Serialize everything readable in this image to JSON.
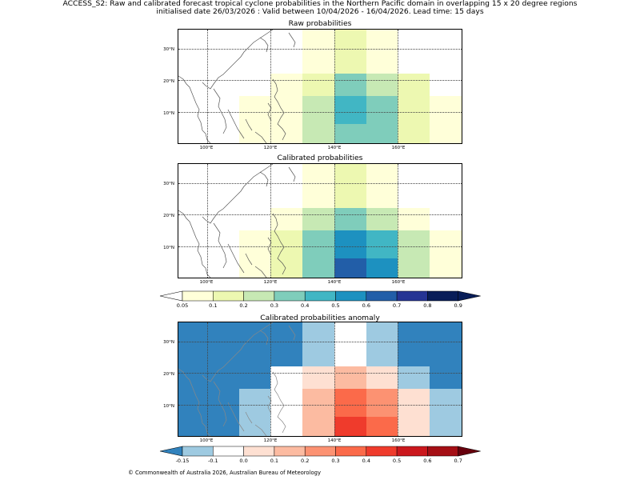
{
  "header": {
    "line1": "ACCESS_S2: Raw and calibrated forecast tropical cyclone probabilities in the Northern Pacific domain in overlapping 15 x 20 degree regions",
    "line2": "initialised date 26/03/2026 :  Valid between 10/04/2026 - 16/04/2026. Lead time: 15 days"
  },
  "axes": {
    "lat_labels": [
      "30°N",
      "20°N",
      "10°N"
    ],
    "lon_labels": [
      "100°E",
      "120°E",
      "140°E",
      "160°E"
    ]
  },
  "panels": [
    {
      "title": "Raw probabilities",
      "cells": [
        {
          "lon0": 110,
          "lon1": 130,
          "lat0": 0,
          "lat1": 15,
          "color": "#ffffd9"
        },
        {
          "lon0": 120,
          "lon1": 130,
          "lat0": 15,
          "lat1": 22,
          "color": "#ffffd9"
        },
        {
          "lon0": 130,
          "lon1": 140,
          "lat0": 22,
          "lat1": 30,
          "color": "#ffffd9"
        },
        {
          "lon0": 130,
          "lon1": 140,
          "lat0": 15,
          "lat1": 22,
          "color": "#edf8b1"
        },
        {
          "lon0": 130,
          "lon1": 140,
          "lat0": 0,
          "lat1": 15,
          "color": "#c7e9b4"
        },
        {
          "lon0": 150,
          "lon1": 160,
          "lat0": 22,
          "lat1": 30,
          "color": "#ffffd9"
        },
        {
          "lon0": 140,
          "lon1": 150,
          "lat0": 22,
          "lat1": 30,
          "color": "#edf8b1"
        },
        {
          "lon0": 130,
          "lon1": 140,
          "lat0": 30,
          "lat1": 37,
          "color": "#ffffd9"
        },
        {
          "lon0": 140,
          "lon1": 150,
          "lat0": 30,
          "lat1": 37,
          "color": "#edf8b1"
        },
        {
          "lon0": 150,
          "lon1": 160,
          "lat0": 30,
          "lat1": 37,
          "color": "#ffffd9"
        },
        {
          "lon0": 140,
          "lon1": 150,
          "lat0": 15,
          "lat1": 22,
          "color": "#7fcdbb"
        },
        {
          "lon0": 150,
          "lon1": 160,
          "lat0": 15,
          "lat1": 22,
          "color": "#c7e9b4"
        },
        {
          "lon0": 160,
          "lon1": 170,
          "lat0": 15,
          "lat1": 22,
          "color": "#edf8b1"
        },
        {
          "lon0": 140,
          "lon1": 150,
          "lat0": 6,
          "lat1": 15,
          "color": "#41b6c4"
        },
        {
          "lon0": 140,
          "lon1": 150,
          "lat0": 0,
          "lat1": 6,
          "color": "#7fcdbb"
        },
        {
          "lon0": 150,
          "lon1": 160,
          "lat0": 0,
          "lat1": 15,
          "color": "#7fcdbb"
        },
        {
          "lon0": 160,
          "lon1": 170,
          "lat0": 0,
          "lat1": 15,
          "color": "#edf8b1"
        },
        {
          "lon0": 170,
          "lon1": 180,
          "lat0": 0,
          "lat1": 15,
          "color": "#ffffd9"
        }
      ]
    },
    {
      "title": "Calibrated probabilities",
      "cells": [
        {
          "lon0": 110,
          "lon1": 130,
          "lat0": 0,
          "lat1": 15,
          "color": "#ffffd9"
        },
        {
          "lon0": 120,
          "lon1": 130,
          "lat0": 0,
          "lat1": 15,
          "color": "#edf8b1"
        },
        {
          "lon0": 120,
          "lon1": 130,
          "lat0": 15,
          "lat1": 22,
          "color": "#ffffd9"
        },
        {
          "lon0": 130,
          "lon1": 140,
          "lat0": 22,
          "lat1": 30,
          "color": "#ffffd9"
        },
        {
          "lon0": 130,
          "lon1": 140,
          "lat0": 15,
          "lat1": 22,
          "color": "#c7e9b4"
        },
        {
          "lon0": 130,
          "lon1": 140,
          "lat0": 0,
          "lat1": 15,
          "color": "#7fcdbb"
        },
        {
          "lon0": 140,
          "lon1": 150,
          "lat0": 22,
          "lat1": 30,
          "color": "#edf8b1"
        },
        {
          "lon0": 150,
          "lon1": 160,
          "lat0": 22,
          "lat1": 30,
          "color": "#ffffd9"
        },
        {
          "lon0": 130,
          "lon1": 140,
          "lat0": 30,
          "lat1": 37,
          "color": "#ffffd9"
        },
        {
          "lon0": 140,
          "lon1": 150,
          "lat0": 30,
          "lat1": 37,
          "color": "#edf8b1"
        },
        {
          "lon0": 150,
          "lon1": 160,
          "lat0": 30,
          "lat1": 37,
          "color": "#ffffd9"
        },
        {
          "lon0": 140,
          "lon1": 150,
          "lat0": 15,
          "lat1": 22,
          "color": "#7fcdbb"
        },
        {
          "lon0": 150,
          "lon1": 160,
          "lat0": 15,
          "lat1": 22,
          "color": "#c7e9b4"
        },
        {
          "lon0": 160,
          "lon1": 170,
          "lat0": 15,
          "lat1": 22,
          "color": "#ffffd9"
        },
        {
          "lon0": 140,
          "lon1": 150,
          "lat0": 6,
          "lat1": 15,
          "color": "#1d91c0"
        },
        {
          "lon0": 140,
          "lon1": 150,
          "lat0": 0,
          "lat1": 6,
          "color": "#225ea8"
        },
        {
          "lon0": 150,
          "lon1": 160,
          "lat0": 6,
          "lat1": 15,
          "color": "#41b6c4"
        },
        {
          "lon0": 150,
          "lon1": 160,
          "lat0": 0,
          "lat1": 6,
          "color": "#1d91c0"
        },
        {
          "lon0": 160,
          "lon1": 170,
          "lat0": 0,
          "lat1": 15,
          "color": "#c7e9b4"
        },
        {
          "lon0": 170,
          "lon1": 180,
          "lat0": 0,
          "lat1": 15,
          "color": "#ffffd9"
        }
      ]
    },
    {
      "title": "Calibrated probabilities anomaly",
      "background": "#3182bd",
      "cells": [
        {
          "lon0": 110,
          "lon1": 120,
          "lat0": 0,
          "lat1": 15,
          "color": "#9ecae1"
        },
        {
          "lon0": 120,
          "lon1": 130,
          "lat0": 0,
          "lat1": 15,
          "color": "#ffffff"
        },
        {
          "lon0": 120,
          "lon1": 130,
          "lat0": 15,
          "lat1": 22,
          "color": "#ffffff"
        },
        {
          "lon0": 130,
          "lon1": 140,
          "lat0": 22,
          "lat1": 30,
          "color": "#9ecae1"
        },
        {
          "lon0": 130,
          "lon1": 140,
          "lat0": 30,
          "lat1": 37,
          "color": "#9ecae1"
        },
        {
          "lon0": 140,
          "lon1": 150,
          "lat0": 22,
          "lat1": 30,
          "color": "#ffffff"
        },
        {
          "lon0": 140,
          "lon1": 150,
          "lat0": 30,
          "lat1": 37,
          "color": "#ffffff"
        },
        {
          "lon0": 150,
          "lon1": 160,
          "lat0": 22,
          "lat1": 30,
          "color": "#9ecae1"
        },
        {
          "lon0": 150,
          "lon1": 160,
          "lat0": 30,
          "lat1": 37,
          "color": "#9ecae1"
        },
        {
          "lon0": 130,
          "lon1": 140,
          "lat0": 15,
          "lat1": 22,
          "color": "#fee0d2"
        },
        {
          "lon0": 140,
          "lon1": 150,
          "lat0": 15,
          "lat1": 22,
          "color": "#fcbba1"
        },
        {
          "lon0": 150,
          "lon1": 160,
          "lat0": 15,
          "lat1": 22,
          "color": "#fee0d2"
        },
        {
          "lon0": 160,
          "lon1": 170,
          "lat0": 15,
          "lat1": 22,
          "color": "#9ecae1"
        },
        {
          "lon0": 130,
          "lon1": 140,
          "lat0": 0,
          "lat1": 15,
          "color": "#fcbba1"
        },
        {
          "lon0": 140,
          "lon1": 150,
          "lat0": 6,
          "lat1": 15,
          "color": "#fb6a4a"
        },
        {
          "lon0": 140,
          "lon1": 150,
          "lat0": 0,
          "lat1": 6,
          "color": "#ef3b2c"
        },
        {
          "lon0": 150,
          "lon1": 160,
          "lat0": 6,
          "lat1": 15,
          "color": "#fc9272"
        },
        {
          "lon0": 150,
          "lon1": 160,
          "lat0": 0,
          "lat1": 6,
          "color": "#fb6a4a"
        },
        {
          "lon0": 160,
          "lon1": 170,
          "lat0": 0,
          "lat1": 15,
          "color": "#fee0d2"
        },
        {
          "lon0": 170,
          "lon1": 180,
          "lat0": 0,
          "lat1": 15,
          "color": "#9ecae1"
        }
      ]
    }
  ],
  "colorbar_prob": {
    "labels": [
      "0.05",
      "0.1",
      "0.2",
      "0.3",
      "0.4",
      "0.5",
      "0.6",
      "0.7",
      "0.8",
      "0.9"
    ],
    "colors": [
      "#ffffd9",
      "#edf8b1",
      "#c7e9b4",
      "#7fcdbb",
      "#41b6c4",
      "#1d91c0",
      "#225ea8",
      "#253494",
      "#081d58"
    ],
    "under": "#ffffff",
    "over": "#081d58"
  },
  "colorbar_anom": {
    "labels": [
      "-0.15",
      "-0.1",
      "0.0",
      "0.1",
      "0.2",
      "0.3",
      "0.4",
      "0.5",
      "0.6",
      "0.7"
    ],
    "colors": [
      "#9ecae1",
      "#ffffff",
      "#fee0d2",
      "#fcbba1",
      "#fc9272",
      "#fb6a4a",
      "#ef3b2c",
      "#cb181d",
      "#a50f15"
    ],
    "under": "#3182bd",
    "over": "#67000d"
  },
  "footer": "© Commonwealth of Australia 2026, Australian Bureau of Meteorology"
}
